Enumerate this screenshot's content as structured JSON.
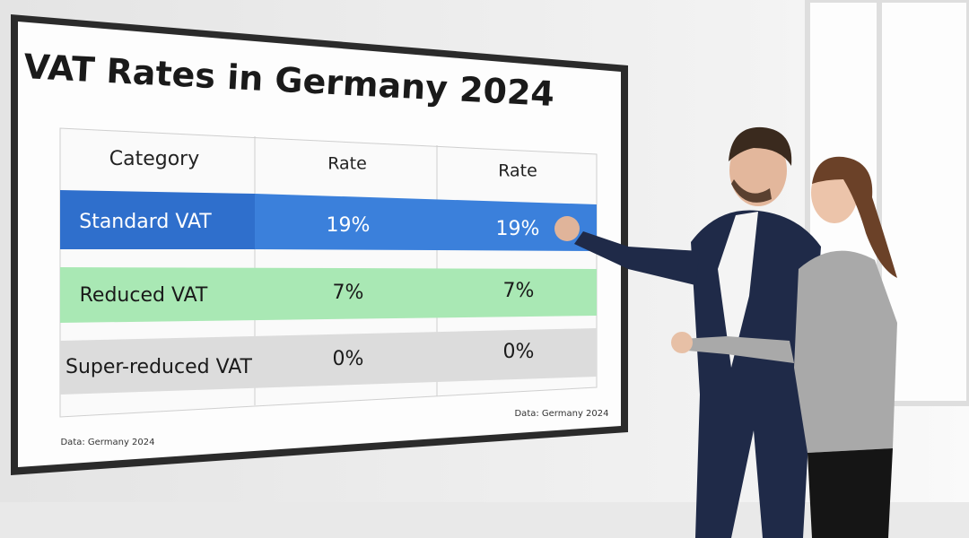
{
  "screen": {
    "title": "VAT Rates in Germany 2024",
    "table": {
      "header": [
        "Category",
        "Rate",
        "Rate"
      ],
      "rows": [
        [
          "Standard VAT",
          "19%",
          "19%"
        ],
        [
          "Reduced VAT",
          "7%",
          "7%"
        ],
        [
          "Super-reduced VAT",
          "0%",
          "0%"
        ]
      ]
    },
    "notes": [
      "Data: Germany 2024",
      "Data: Germany 2024"
    ]
  }
}
